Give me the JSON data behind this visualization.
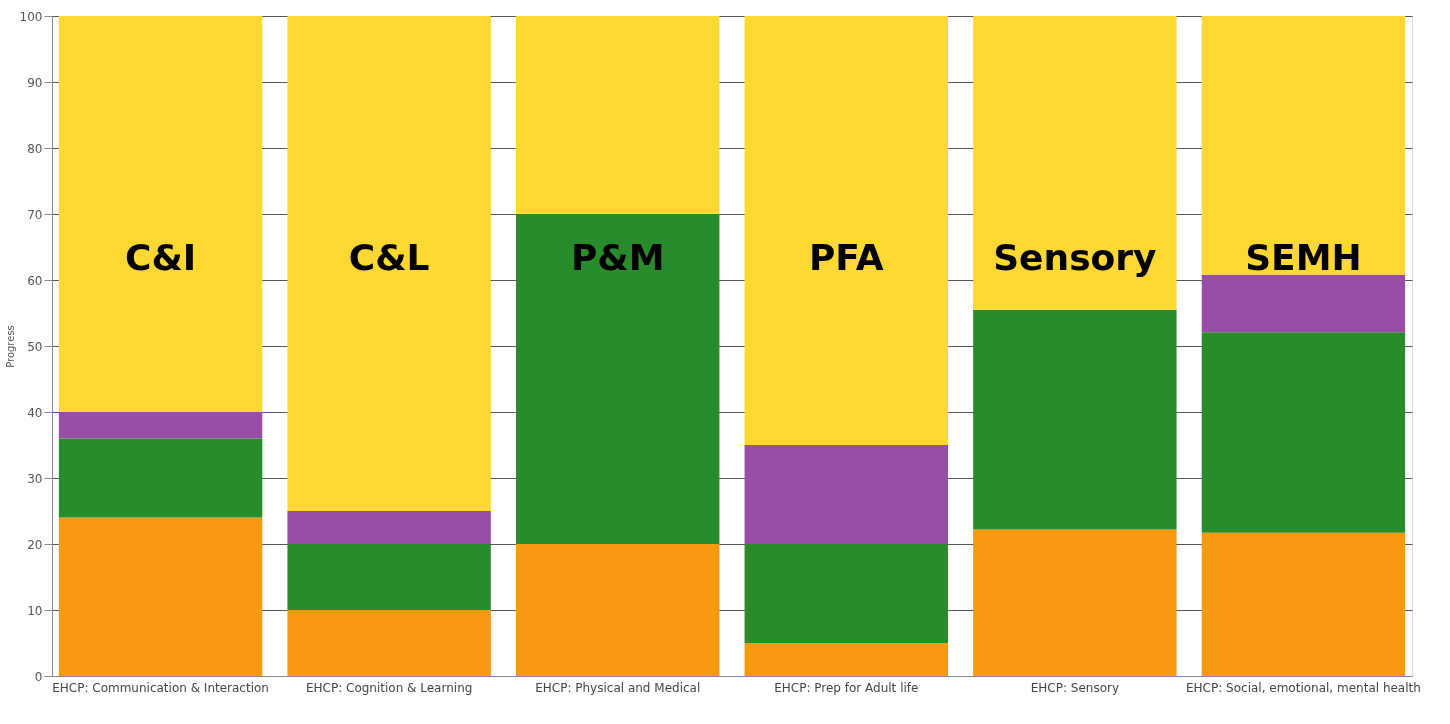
{
  "chart_data": {
    "type": "bar",
    "stacked": true,
    "ylabel": "Progress",
    "categories": [
      "EHCP: Communication & Interaction",
      "EHCP: Cognition & Learning",
      "EHCP: Physical and Medical",
      "EHCP: Prep for Adult life",
      "EHCP: Sensory",
      "EHCP: Social, emotional, mental health"
    ],
    "series": [
      {
        "color": "#f79a12",
        "values": [
          24,
          10,
          20,
          5,
          22.2,
          21.7
        ]
      },
      {
        "color": "#288c2c",
        "values": [
          12,
          10,
          50,
          15,
          33.3,
          30.4
        ]
      },
      {
        "color": "#964fa5",
        "values": [
          4,
          5,
          0,
          15,
          0,
          8.7
        ]
      },
      {
        "color": "#fdd832",
        "values": [
          60,
          75,
          30,
          65,
          44.5,
          39.2
        ]
      }
    ],
    "ylim": [
      0,
      100
    ],
    "yticks": [
      0,
      10,
      20,
      30,
      40,
      50,
      60,
      70,
      80,
      90,
      100
    ],
    "grid": "y",
    "annotations": [
      "C&I",
      "C&L",
      "P&M",
      "PFA",
      "Sensory",
      "SEMH"
    ]
  }
}
